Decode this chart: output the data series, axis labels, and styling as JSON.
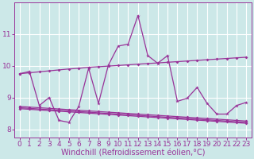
{
  "xlabel": "Windchill (Refroidissement éolien,°C)",
  "bg_color": "#cce8e8",
  "grid_color": "#ffffff",
  "line_color": "#993399",
  "x_ticks": [
    0,
    1,
    2,
    3,
    4,
    5,
    6,
    7,
    8,
    9,
    10,
    11,
    12,
    13,
    14,
    15,
    16,
    17,
    18,
    19,
    20,
    21,
    22,
    23
  ],
  "y_ticks": [
    8,
    9,
    10,
    11
  ],
  "ylim": [
    7.75,
    12.0
  ],
  "xlim": [
    -0.5,
    23.5
  ],
  "trend_up_x": [
    0,
    1,
    2,
    3,
    4,
    5,
    6,
    7,
    8,
    9,
    10,
    11,
    12,
    13,
    14,
    15,
    16,
    17,
    18,
    19,
    20,
    21,
    22,
    23
  ],
  "trend_up_y": [
    9.75,
    9.78,
    9.81,
    9.84,
    9.87,
    9.9,
    9.92,
    9.95,
    9.97,
    9.99,
    10.01,
    10.03,
    10.05,
    10.07,
    10.09,
    10.11,
    10.13,
    10.15,
    10.17,
    10.19,
    10.21,
    10.23,
    10.25,
    10.27
  ],
  "trend_dn1_x": [
    0,
    1,
    2,
    3,
    4,
    5,
    6,
    7,
    8,
    9,
    10,
    11,
    12,
    13,
    14,
    15,
    16,
    17,
    18,
    19,
    20,
    21,
    22,
    23
  ],
  "trend_dn1_y": [
    8.72,
    8.7,
    8.68,
    8.66,
    8.64,
    8.62,
    8.6,
    8.58,
    8.56,
    8.54,
    8.52,
    8.5,
    8.48,
    8.46,
    8.44,
    8.42,
    8.4,
    8.38,
    8.36,
    8.34,
    8.32,
    8.3,
    8.28,
    8.26
  ],
  "trend_dn2_x": [
    0,
    1,
    2,
    3,
    4,
    5,
    6,
    7,
    8,
    9,
    10,
    11,
    12,
    13,
    14,
    15,
    16,
    17,
    18,
    19,
    20,
    21,
    22,
    23
  ],
  "trend_dn2_y": [
    8.68,
    8.66,
    8.64,
    8.62,
    8.6,
    8.58,
    8.56,
    8.54,
    8.52,
    8.5,
    8.48,
    8.46,
    8.44,
    8.42,
    8.4,
    8.38,
    8.36,
    8.34,
    8.32,
    8.3,
    8.28,
    8.26,
    8.24,
    8.22
  ],
  "trend_dn3_x": [
    0,
    1,
    2,
    3,
    4,
    5,
    6,
    7,
    8,
    9,
    10,
    11,
    12,
    13,
    14,
    15,
    16,
    17,
    18,
    19,
    20,
    21,
    22,
    23
  ],
  "trend_dn3_y": [
    8.65,
    8.63,
    8.61,
    8.59,
    8.57,
    8.55,
    8.53,
    8.51,
    8.49,
    8.47,
    8.45,
    8.43,
    8.41,
    8.39,
    8.37,
    8.35,
    8.33,
    8.31,
    8.29,
    8.27,
    8.25,
    8.23,
    8.21,
    8.19
  ],
  "main_x": [
    0,
    1,
    2,
    3,
    4,
    5,
    6,
    7,
    8,
    9,
    10,
    11,
    12,
    13,
    14,
    15,
    16,
    17,
    18,
    19,
    20,
    21,
    22,
    23
  ],
  "main_y": [
    9.75,
    9.82,
    8.75,
    9.0,
    8.28,
    8.22,
    8.72,
    9.92,
    8.82,
    10.02,
    10.62,
    10.68,
    11.58,
    10.32,
    10.08,
    10.32,
    8.88,
    8.98,
    9.32,
    8.82,
    8.48,
    8.48,
    8.75,
    8.85
  ],
  "xlabel_fontsize": 7,
  "tick_fontsize": 6.5
}
